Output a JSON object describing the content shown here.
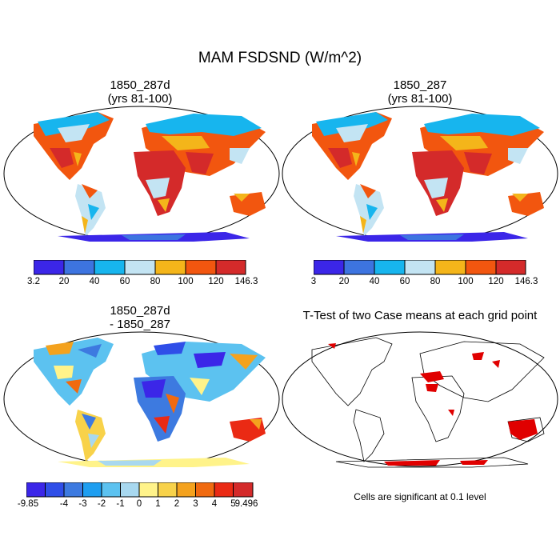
{
  "figure_title": "MAM FSDSND (W/m^2)",
  "panels": [
    {
      "id": "case1",
      "title_line1": "1850_287d",
      "title_line2": "(yrs 81-100)",
      "colorbar": {
        "labels": [
          "3.2",
          "20",
          "40",
          "60",
          "80",
          "100",
          "120",
          "146.3"
        ],
        "colors": [
          "#3b26e8",
          "#3d74e0",
          "#17b5ee",
          "#c3e4f3",
          "#f4b51a",
          "#f2560f",
          "#d42a2a"
        ]
      }
    },
    {
      "id": "case2",
      "title_line1": "1850_287",
      "title_line2": "(yrs 81-100)",
      "colorbar": {
        "labels": [
          "3",
          "20",
          "40",
          "60",
          "80",
          "100",
          "120",
          "146.3"
        ],
        "colors": [
          "#3b26e8",
          "#3d74e0",
          "#17b5ee",
          "#c3e4f3",
          "#f4b51a",
          "#f2560f",
          "#d42a2a"
        ]
      }
    },
    {
      "id": "difference",
      "title_line1": "1850_287d",
      "title_line2": "- 1850_287",
      "colorbar": {
        "labels": [
          "-9.85",
          "-4",
          "-3",
          "-2",
          "-1",
          "0",
          "1",
          "2",
          "3",
          "4",
          "5",
          "9.496"
        ],
        "colors": [
          "#3b26e8",
          "#2f4ee8",
          "#3d7ae0",
          "#1e9ef0",
          "#5cc2f0",
          "#a8d8ef",
          "#fff38a",
          "#f8d24a",
          "#f4a21e",
          "#f06a10",
          "#ea2a14",
          "#d42a2a"
        ]
      }
    },
    {
      "id": "ttest",
      "title_line1": "T-Test of two Case means at each grid point",
      "note": "Cells are significant at 0.1 level"
    }
  ]
}
